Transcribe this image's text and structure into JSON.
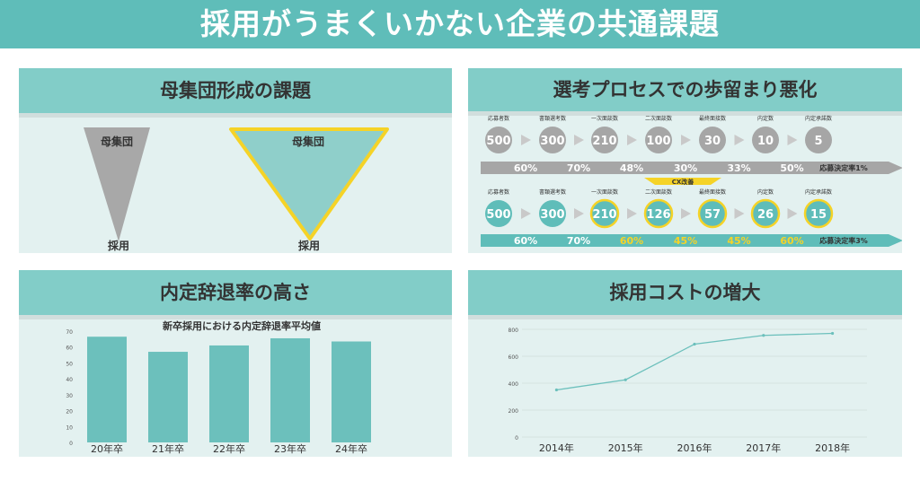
{
  "title": "採用がうまくいかない企業の共通課題",
  "funnel": {
    "heading": "母集団形成の課題",
    "top_label": "母集団",
    "bottom_label": "採用"
  },
  "process": {
    "heading": "選考プロセスでの歩留まり悪化",
    "stages": [
      "応募者数",
      "書類選考数",
      "一次面談数",
      "二次面談数",
      "最終面接数",
      "内定数",
      "内定承諾数"
    ],
    "before": {
      "values": [
        500,
        300,
        210,
        100,
        30,
        10,
        5
      ],
      "rates": [
        "60%",
        "70%",
        "48%",
        "30%",
        "33%",
        "50%"
      ],
      "final_label": "応募決定率1%"
    },
    "cx_label": "CX改善",
    "after": {
      "values": [
        500,
        300,
        210,
        126,
        57,
        26,
        15
      ],
      "rates": [
        "60%",
        "70%",
        "60%",
        "45%",
        "45%",
        "60%"
      ],
      "final_label": "応募決定率3%"
    },
    "colors": {
      "gray": "#a6a6a6",
      "teal": "#5fbdb9",
      "yellow": "#f5d327"
    }
  },
  "decline": {
    "heading": "内定辞退率の高さ",
    "chart_data": {
      "type": "bar",
      "title": "新卒採用における内定辞退率平均値",
      "categories": [
        "20年卒",
        "21年卒",
        "22年卒",
        "23年卒",
        "24年卒"
      ],
      "values": [
        66.5,
        57,
        61,
        65.5,
        63.5
      ],
      "ylim": [
        0,
        70
      ],
      "yticks": [
        0,
        10,
        20,
        30,
        40,
        50,
        60,
        70
      ],
      "color": "#6cc0bc",
      "grid": false
    }
  },
  "cost": {
    "heading": "採用コストの増大",
    "chart_data": {
      "type": "line",
      "title": "",
      "categories": [
        "2014年",
        "2015年",
        "2016年",
        "2017年",
        "2018年"
      ],
      "values": [
        350,
        425,
        690,
        755,
        770
      ],
      "ylim": [
        0,
        800
      ],
      "yticks": [
        0,
        200,
        400,
        600,
        800
      ],
      "color": "#6cc0bc",
      "grid": true
    }
  }
}
